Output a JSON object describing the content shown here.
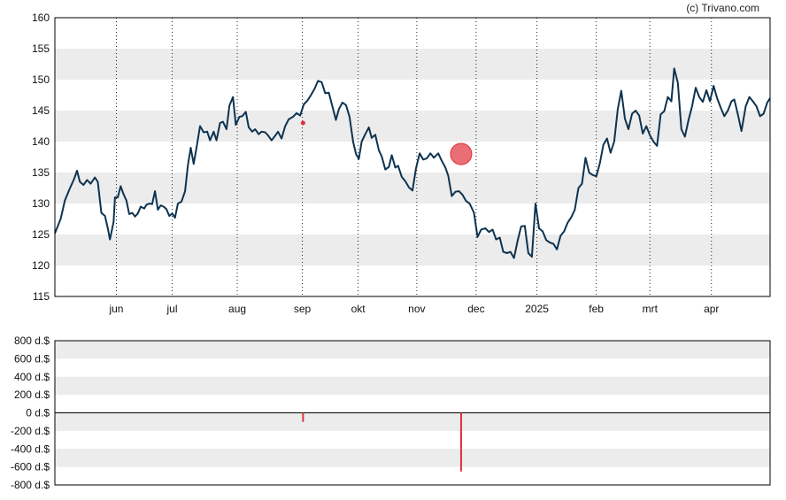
{
  "credit": "(c) Trivano.com",
  "colors": {
    "line": "#0d3350",
    "band": "#ececec",
    "marker": "#e0303c",
    "bar": "#e0303c",
    "axis": "#000000",
    "vgrid": "#222222"
  },
  "chart_data": [
    {
      "type": "line",
      "title": "",
      "xlabel": "",
      "ylabel": "",
      "ylim": [
        115,
        160
      ],
      "y_ticks": [
        "160",
        "155",
        "150",
        "145",
        "140",
        "135",
        "130",
        "125",
        "120",
        "115"
      ],
      "x_ticks": [
        {
          "label": "jun",
          "t": 0.086
        },
        {
          "label": "jul",
          "t": 0.164
        },
        {
          "label": "aug",
          "t": 0.255
        },
        {
          "label": "sep",
          "t": 0.346
        },
        {
          "label": "okt",
          "t": 0.424
        },
        {
          "label": "nov",
          "t": 0.506
        },
        {
          "label": "dec",
          "t": 0.589
        },
        {
          "label": "2025",
          "t": 0.674
        },
        {
          "label": "feb",
          "t": 0.757
        },
        {
          "label": "mrt",
          "t": 0.832
        },
        {
          "label": "apr",
          "t": 0.918
        }
      ],
      "grid": "alternating horizontal bands, dotted vertical lines at month ticks",
      "series": [
        {
          "values": [
            [
              0.0,
              125.2
            ],
            [
              0.008,
              127.5
            ],
            [
              0.014,
              130.5
            ],
            [
              0.02,
              132.2
            ],
            [
              0.027,
              134.0
            ],
            [
              0.031,
              135.3
            ],
            [
              0.035,
              133.5
            ],
            [
              0.04,
              133.0
            ],
            [
              0.045,
              133.8
            ],
            [
              0.05,
              133.2
            ],
            [
              0.056,
              134.2
            ],
            [
              0.06,
              133.5
            ],
            [
              0.065,
              128.5
            ],
            [
              0.07,
              128.0
            ],
            [
              0.074,
              126.0
            ],
            [
              0.077,
              124.2
            ],
            [
              0.082,
              127.0
            ],
            [
              0.084,
              131.0
            ],
            [
              0.088,
              131.0
            ],
            [
              0.092,
              132.8
            ],
            [
              0.096,
              131.5
            ],
            [
              0.1,
              130.5
            ],
            [
              0.104,
              128.3
            ],
            [
              0.108,
              128.5
            ],
            [
              0.112,
              127.9
            ],
            [
              0.116,
              128.4
            ],
            [
              0.12,
              129.5
            ],
            [
              0.125,
              129.2
            ],
            [
              0.128,
              129.8
            ],
            [
              0.132,
              130.0
            ],
            [
              0.136,
              129.9
            ],
            [
              0.14,
              132.0
            ],
            [
              0.144,
              129.0
            ],
            [
              0.148,
              129.7
            ],
            [
              0.152,
              129.5
            ],
            [
              0.156,
              129.1
            ],
            [
              0.16,
              128.0
            ],
            [
              0.164,
              128.4
            ],
            [
              0.168,
              127.7
            ],
            [
              0.172,
              130.0
            ],
            [
              0.177,
              130.3
            ],
            [
              0.182,
              132.0
            ],
            [
              0.186,
              136.2
            ],
            [
              0.19,
              139.0
            ],
            [
              0.194,
              136.4
            ],
            [
              0.198,
              139.0
            ],
            [
              0.203,
              142.5
            ],
            [
              0.208,
              141.5
            ],
            [
              0.213,
              141.6
            ],
            [
              0.217,
              140.2
            ],
            [
              0.222,
              141.6
            ],
            [
              0.226,
              140.2
            ],
            [
              0.231,
              143.0
            ],
            [
              0.235,
              143.2
            ],
            [
              0.24,
              142.0
            ],
            [
              0.244,
              145.8
            ],
            [
              0.249,
              147.2
            ],
            [
              0.253,
              142.7
            ],
            [
              0.258,
              144.0
            ],
            [
              0.262,
              144.1
            ],
            [
              0.267,
              144.8
            ],
            [
              0.271,
              142.3
            ],
            [
              0.276,
              141.6
            ],
            [
              0.28,
              142.0
            ],
            [
              0.285,
              141.2
            ],
            [
              0.289,
              141.6
            ],
            [
              0.294,
              141.5
            ],
            [
              0.298,
              141.0
            ],
            [
              0.303,
              140.2
            ],
            [
              0.307,
              140.8
            ],
            [
              0.312,
              141.6
            ],
            [
              0.317,
              140.5
            ],
            [
              0.322,
              142.5
            ],
            [
              0.327,
              143.6
            ],
            [
              0.333,
              144.0
            ],
            [
              0.338,
              144.6
            ],
            [
              0.343,
              144.2
            ],
            [
              0.348,
              146.0
            ],
            [
              0.353,
              146.6
            ],
            [
              0.358,
              147.5
            ],
            [
              0.363,
              148.5
            ],
            [
              0.368,
              149.8
            ],
            [
              0.373,
              149.6
            ],
            [
              0.378,
              147.8
            ],
            [
              0.383,
              147.9
            ],
            [
              0.388,
              145.7
            ],
            [
              0.393,
              143.5
            ],
            [
              0.397,
              145.2
            ],
            [
              0.402,
              146.3
            ],
            [
              0.407,
              145.9
            ],
            [
              0.412,
              144.0
            ],
            [
              0.417,
              140.0
            ],
            [
              0.421,
              138.0
            ],
            [
              0.425,
              137.2
            ],
            [
              0.429,
              140.0
            ],
            [
              0.434,
              141.2
            ],
            [
              0.439,
              142.3
            ],
            [
              0.443,
              140.6
            ],
            [
              0.448,
              141.1
            ],
            [
              0.453,
              138.6
            ],
            [
              0.457,
              137.6
            ],
            [
              0.462,
              135.5
            ],
            [
              0.467,
              135.9
            ],
            [
              0.471,
              137.8
            ],
            [
              0.476,
              135.8
            ],
            [
              0.48,
              136.1
            ],
            [
              0.485,
              134.3
            ],
            [
              0.49,
              133.6
            ],
            [
              0.495,
              132.6
            ],
            [
              0.5,
              132.1
            ],
            [
              0.505,
              135.7
            ],
            [
              0.51,
              138.1
            ],
            [
              0.515,
              137.1
            ],
            [
              0.52,
              137.3
            ],
            [
              0.525,
              138.1
            ],
            [
              0.53,
              137.4
            ],
            [
              0.536,
              138.1
            ],
            [
              0.541,
              136.9
            ],
            [
              0.546,
              135.8
            ],
            [
              0.55,
              134.5
            ],
            [
              0.555,
              131.2
            ],
            [
              0.56,
              131.9
            ],
            [
              0.565,
              132.0
            ],
            [
              0.57,
              131.4
            ],
            [
              0.575,
              130.4
            ],
            [
              0.58,
              130.0
            ],
            [
              0.586,
              128.5
            ],
            [
              0.591,
              124.6
            ],
            [
              0.596,
              125.8
            ],
            [
              0.602,
              126.0
            ],
            [
              0.607,
              125.4
            ],
            [
              0.612,
              125.8
            ],
            [
              0.617,
              124.2
            ],
            [
              0.622,
              124.5
            ],
            [
              0.627,
              122.2
            ],
            [
              0.632,
              122.0
            ],
            [
              0.637,
              122.2
            ],
            [
              0.642,
              121.2
            ],
            [
              0.647,
              124.0
            ],
            [
              0.652,
              126.3
            ],
            [
              0.657,
              126.4
            ],
            [
              0.662,
              122.0
            ],
            [
              0.667,
              121.4
            ],
            [
              0.672,
              130.0
            ],
            [
              0.677,
              126.0
            ],
            [
              0.682,
              125.5
            ],
            [
              0.687,
              124.1
            ],
            [
              0.692,
              123.7
            ],
            [
              0.697,
              123.5
            ],
            [
              0.702,
              122.6
            ],
            [
              0.707,
              124.8
            ],
            [
              0.712,
              125.5
            ],
            [
              0.717,
              126.9
            ],
            [
              0.722,
              127.8
            ],
            [
              0.727,
              129.0
            ],
            [
              0.732,
              132.5
            ],
            [
              0.737,
              133.2
            ],
            [
              0.742,
              137.4
            ],
            [
              0.747,
              135.0
            ],
            [
              0.752,
              134.6
            ],
            [
              0.757,
              134.4
            ],
            [
              0.762,
              136.5
            ],
            [
              0.767,
              139.5
            ],
            [
              0.772,
              140.5
            ],
            [
              0.777,
              138.2
            ],
            [
              0.782,
              140.0
            ],
            [
              0.787,
              145.2
            ],
            [
              0.792,
              148.2
            ],
            [
              0.797,
              143.7
            ],
            [
              0.802,
              142.0
            ],
            [
              0.807,
              144.5
            ],
            [
              0.812,
              145.0
            ],
            [
              0.817,
              144.2
            ],
            [
              0.822,
              141.3
            ],
            [
              0.827,
              142.5
            ],
            [
              0.832,
              141.0
            ],
            [
              0.837,
              140.0
            ],
            [
              0.842,
              139.3
            ],
            [
              0.847,
              144.4
            ],
            [
              0.852,
              144.9
            ],
            [
              0.857,
              147.2
            ],
            [
              0.862,
              146.5
            ],
            [
              0.866,
              151.8
            ],
            [
              0.871,
              149.5
            ],
            [
              0.876,
              142.0
            ],
            [
              0.881,
              140.8
            ],
            [
              0.886,
              143.5
            ],
            [
              0.891,
              145.7
            ],
            [
              0.896,
              148.7
            ],
            [
              0.901,
              147.2
            ],
            [
              0.906,
              146.4
            ],
            [
              0.911,
              148.3
            ],
            [
              0.916,
              146.5
            ],
            [
              0.921,
              149.0
            ],
            [
              0.926,
              147.0
            ],
            [
              0.931,
              145.5
            ],
            [
              0.936,
              144.1
            ],
            [
              0.941,
              145.0
            ],
            [
              0.946,
              146.5
            ],
            [
              0.95,
              146.8
            ],
            [
              0.955,
              144.4
            ],
            [
              0.96,
              141.7
            ],
            [
              0.966,
              145.7
            ],
            [
              0.971,
              147.2
            ],
            [
              0.976,
              146.5
            ],
            [
              0.981,
              145.7
            ],
            [
              0.986,
              144.1
            ],
            [
              0.991,
              144.5
            ],
            [
              0.996,
              146.3
            ],
            [
              1.0,
              147.0
            ]
          ]
        }
      ],
      "markers": [
        {
          "t": 0.347,
          "value": 143.0,
          "kind": "small-dot"
        },
        {
          "t": 0.568,
          "value": 138.0,
          "kind": "large-circle"
        }
      ]
    },
    {
      "type": "bar",
      "title": "",
      "xlabel": "",
      "ylabel": "",
      "ylim": [
        -800,
        800
      ],
      "y_ticks": [
        "800 d.$",
        "600 d.$",
        "400 d.$",
        "200 d.$",
        "0 d.$",
        "-200 d.$",
        "-400 d.$",
        "-600 d.$",
        "-800 d.$"
      ],
      "bars": [
        {
          "t": 0.347,
          "value": -100
        },
        {
          "t": 0.568,
          "value": -650
        }
      ]
    }
  ]
}
